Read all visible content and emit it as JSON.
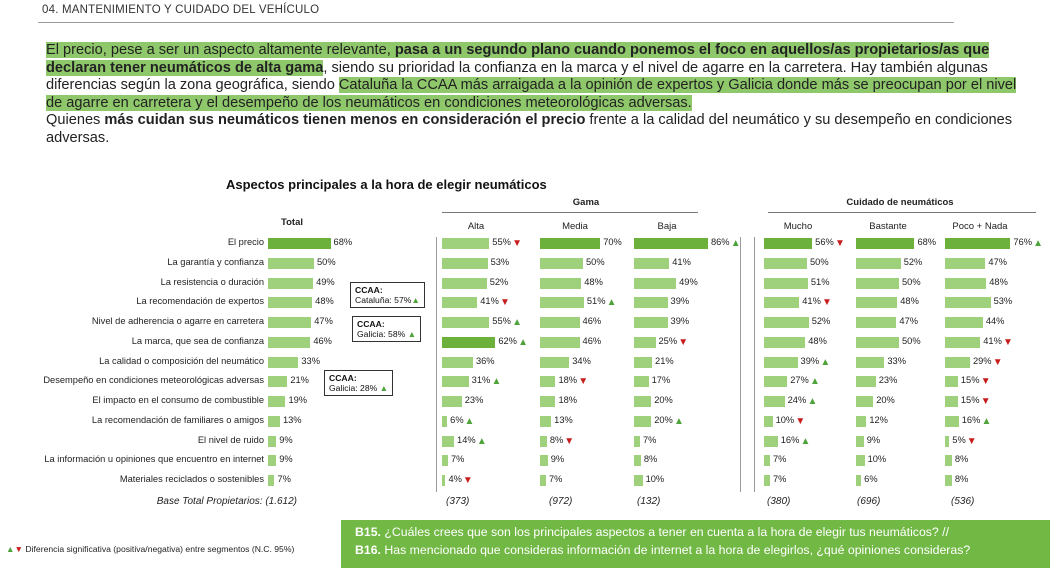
{
  "section_title": "04. MANTENIMIENTO Y CUIDADO DEL VEHÍCULO",
  "intro": {
    "s1": "El precio, pese a ser un aspecto altamente relevante, ",
    "s1_bold": "pasa a un segundo plano cuando ponemos el foco en aquellos/as propietarios/as que declaran tener neumáticos de alta gama",
    "s2": ", siendo su prioridad la confianza en la marca y el nivel de agarre en la carretera. Hay también algunas diferencias según la zona geográfica, siendo ",
    "s3_hl": "Cataluña la CCAA más arraigada a la opinión de expertos y Galicia donde más se preocupan por el nivel de agarre en carretera y el desempeño de los neumáticos en condiciones meteorológicas adversas.",
    "p2_a": "Quienes ",
    "p2_bold": "más cuidan sus neumáticos tienen menos en consideración el precio",
    "p2_b": " frente a la calidad del neumático y su desempeño en condiciones adversas."
  },
  "chart_data": {
    "type": "bar",
    "title": "Aspectos principales a la hora de elegir neumáticos",
    "groups": [
      {
        "name": "",
        "columns": [
          "Total"
        ]
      },
      {
        "name": "Gama",
        "columns": [
          "Alta",
          "Media",
          "Baja"
        ]
      },
      {
        "name": "Cuidado de neumáticos",
        "columns": [
          "Mucho",
          "Bastante",
          "Poco + Nada"
        ]
      }
    ],
    "categories": [
      "El precio",
      "La garantía y confianza",
      "La resistencia o duración",
      "La recomendación de expertos",
      "Nivel de adherencia o agarre en carretera",
      "La marca, que sea de confianza",
      "La calidad o composición del neumático",
      "Desempeño en condiciones meteorológicas adversas",
      "El impacto  en el consumo de combustible",
      "La recomendación de familiares o amigos",
      "El nivel de ruido",
      "La información u opiniones que encuentro en internet",
      "Materiales reciclados o sostenibles"
    ],
    "series": [
      {
        "name": "Total",
        "values": [
          68,
          50,
          49,
          48,
          47,
          46,
          33,
          21,
          19,
          13,
          9,
          9,
          7
        ],
        "sig": [
          "",
          "",
          "",
          "",
          "",
          "",
          "",
          "",
          "",
          "",
          "",
          "",
          ""
        ]
      },
      {
        "name": "Alta",
        "values": [
          55,
          53,
          52,
          41,
          55,
          62,
          36,
          31,
          23,
          6,
          14,
          7,
          4
        ],
        "sig": [
          "down",
          "",
          "",
          "down",
          "up",
          "up",
          "",
          "up",
          "",
          "up",
          "up",
          "",
          "down"
        ]
      },
      {
        "name": "Media",
        "values": [
          70,
          50,
          48,
          51,
          46,
          46,
          34,
          18,
          18,
          13,
          8,
          9,
          7
        ],
        "sig": [
          "",
          "",
          "",
          "up",
          "",
          "",
          "",
          "down",
          "",
          "",
          "down",
          "",
          ""
        ]
      },
      {
        "name": "Baja",
        "values": [
          86,
          41,
          49,
          39,
          39,
          25,
          21,
          17,
          20,
          20,
          7,
          8,
          10
        ],
        "sig": [
          "up",
          "",
          "",
          "",
          "",
          "down",
          "",
          "",
          "",
          "up",
          "",
          "",
          ""
        ]
      },
      {
        "name": "Mucho",
        "values": [
          56,
          50,
          51,
          41,
          52,
          48,
          39,
          27,
          24,
          10,
          16,
          7,
          7
        ],
        "sig": [
          "down",
          "",
          "",
          "down",
          "",
          "",
          "up",
          "up",
          "up",
          "down",
          "up",
          "",
          ""
        ]
      },
      {
        "name": "Bastante",
        "values": [
          68,
          52,
          50,
          48,
          47,
          50,
          33,
          23,
          20,
          12,
          9,
          10,
          6
        ],
        "sig": [
          "",
          "",
          "",
          "",
          "",
          "",
          "",
          "",
          "",
          "",
          "",
          "",
          ""
        ]
      },
      {
        "name": "Poco + Nada",
        "values": [
          76,
          47,
          48,
          53,
          44,
          41,
          29,
          15,
          15,
          16,
          5,
          8,
          8
        ],
        "sig": [
          "up",
          "",
          "",
          "",
          "",
          "down",
          "down",
          "down",
          "down",
          "up",
          "down",
          "",
          ""
        ]
      }
    ],
    "base_label": "Base Total Propietarios: (1.612)",
    "bases": [
      "(373)",
      "(972)",
      "(132)",
      "(380)",
      "(696)",
      "(536)"
    ],
    "colors": {
      "bar": "#9fd07c",
      "bar_highlight": "#6bb13c",
      "up": "#4ea33a",
      "down": "#c81c1c"
    }
  },
  "callouts": [
    {
      "title": "CCAA:",
      "text": "Cataluña: 57%"
    },
    {
      "title": "CCAA:",
      "text": "Galicia: 58%"
    },
    {
      "title": "CCAA:",
      "text": "Galicia: 28%"
    }
  ],
  "legend_text": "Diferencia significativa (positiva/negativa) entre segmentos (N.C. 95%)",
  "questions": {
    "q1_id": "B15.",
    "q1_text": " ¿Cuáles crees que son los principales aspectos a tener en cuenta a la hora de elegir tus neumáticos? //",
    "q2_id": "B16.",
    "q2_text": " Has mencionado que consideras información de internet a la hora de elegirlos, ¿qué opiniones consideras?"
  }
}
